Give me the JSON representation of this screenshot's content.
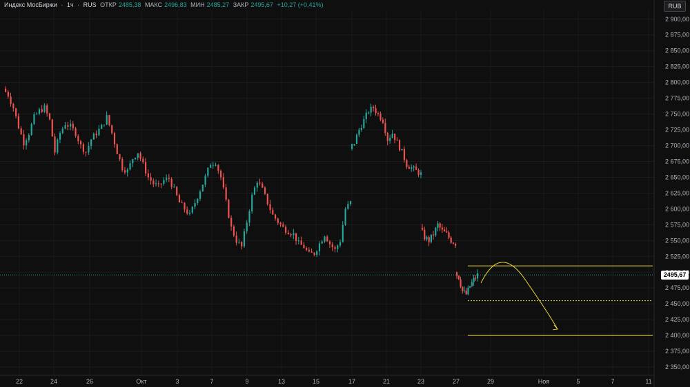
{
  "header": {
    "symbol": "Индекс МосБиржи",
    "interval": "1ч",
    "exchange": "RUS",
    "open_label": "ОТКР",
    "open_value": "2485,38",
    "high_label": "МАКС",
    "high_value": "2496,83",
    "low_label": "МИН",
    "low_value": "2485,27",
    "close_label": "ЗАКР",
    "close_value": "2495,67",
    "change": "+10,27 (+0,41%)"
  },
  "currency_button": "RUB",
  "last_price_label": "2495,67",
  "colors": {
    "background": "#0f0f0f",
    "up": "#26a69a",
    "down": "#ef5350",
    "drawing": "#e6d23c",
    "axis_text": "#b2b5be"
  },
  "chart_data": {
    "type": "candlestick",
    "ylim": [
      2337,
      2915
    ],
    "y_ticks": [
      "2 350,00",
      "2 375,00",
      "2 400,00",
      "2 425,00",
      "2 450,00",
      "2 475,00",
      "2 500,00",
      "2 525,00",
      "2 550,00",
      "2 575,00",
      "2 600,00",
      "2 625,00",
      "2 650,00",
      "2 675,00",
      "2 700,00",
      "2 725,00",
      "2 750,00",
      "2 775,00",
      "2 800,00",
      "2 825,00",
      "2 850,00",
      "2 875,00",
      "2 900,00"
    ],
    "x_ticks": [
      "22",
      "24",
      "26",
      "Окт",
      "3",
      "7",
      "9",
      "13",
      "15",
      "17",
      "21",
      "23",
      "27",
      "29",
      "Ноя",
      "5",
      "7",
      "11"
    ],
    "last_price": 2495.67,
    "path": [
      2790,
      2780,
      2760,
      2730,
      2705,
      2720,
      2745,
      2755,
      2760,
      2740,
      2690,
      2720,
      2735,
      2730,
      2720,
      2700,
      2690,
      2710,
      2720,
      2730,
      2745,
      2720,
      2690,
      2665,
      2660,
      2680,
      2690,
      2670,
      2650,
      2640,
      2635,
      2645,
      2648,
      2630,
      2610,
      2600,
      2590,
      2610,
      2630,
      2650,
      2672,
      2674,
      2650,
      2610,
      2570,
      2550,
      2540,
      2580,
      2620,
      2645,
      2630,
      2610,
      2590,
      2580,
      2570,
      2565,
      2560,
      2545,
      2540,
      2528,
      2530,
      2545,
      2560,
      2545,
      2535,
      2550,
      2600,
      2610
    ],
    "path2": [
      2695,
      2705,
      2725,
      2740,
      2755,
      2760,
      2750,
      2740,
      2710,
      2720,
      2705,
      2690,
      2670,
      2665,
      2660,
      2655
    ],
    "path3": [
      2570,
      2555,
      2550,
      2560,
      2575,
      2565,
      2560,
      2550,
      2545
    ],
    "path4": [
      2500,
      2492,
      2470,
      2465,
      2478,
      2488,
      2495.67
    ],
    "levels": [
      2510,
      2455,
      2400
    ],
    "arrow": {
      "from": [
        2485,
        1.0
      ],
      "peak": [
        2510,
        8
      ],
      "to": [
        2410,
        20
      ]
    }
  }
}
